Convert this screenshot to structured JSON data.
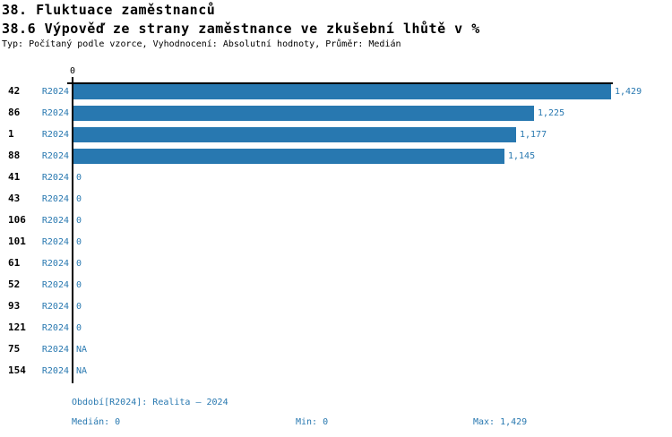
{
  "header": {
    "title": "38. Fluktuace zaměstnanců",
    "subtitle": "38.6 Výpověď ze strany zaměstnance ve zkušební lhůtě v %",
    "meta": "Typ: Počítaný podle vzorce, Vyhodnocení: Absolutní hodnoty, Průměr: Medián"
  },
  "chart_data": {
    "type": "bar",
    "orientation": "horizontal",
    "title": "38.6 Výpověď ze strany zaměstnance ve zkušební lhůtě v %",
    "series_label": "R2024",
    "categories": [
      "42",
      "86",
      "1",
      "88",
      "41",
      "43",
      "106",
      "101",
      "61",
      "52",
      "93",
      "121",
      "75",
      "154"
    ],
    "values": [
      1429,
      1225,
      1177,
      1145,
      0,
      0,
      0,
      0,
      0,
      0,
      0,
      0,
      null,
      null
    ],
    "value_labels": [
      "1,429",
      "1,225",
      "1,177",
      "1,145",
      "0",
      "0",
      "0",
      "0",
      "0",
      "0",
      "0",
      "0",
      "NA",
      "NA"
    ],
    "xlim": [
      0,
      1429
    ],
    "x_tick_labels": [
      "0"
    ],
    "grid": false,
    "legend_position": "none",
    "bar_color": "#2878b0",
    "label_color": "#2878b0"
  },
  "footer": {
    "period": "Období[R2024]: Realita – 2024",
    "median": "Medián: 0",
    "min": "Min: 0",
    "max": "Max: 1,429"
  }
}
